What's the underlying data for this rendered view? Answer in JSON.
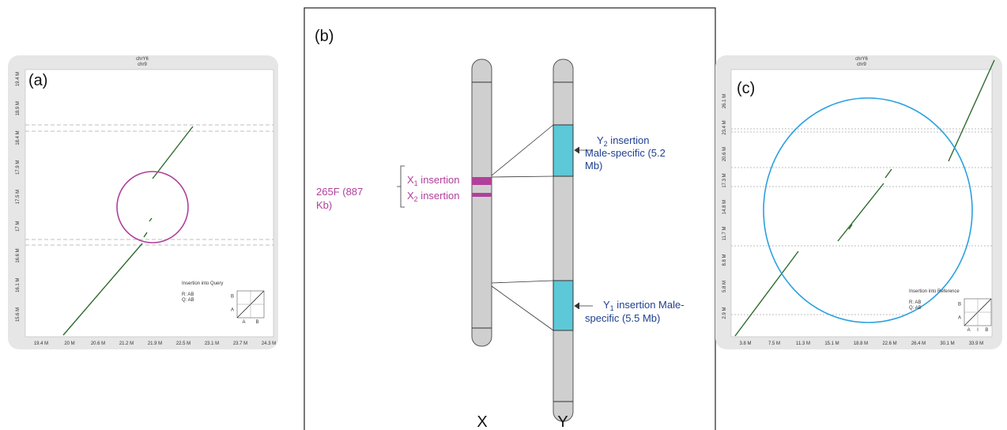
{
  "panel_a": {
    "label": "(a)",
    "title": [
      "chrY6",
      "chr9"
    ],
    "yticks": [
      "19.4 M",
      "18.9 M",
      "18.4 M",
      "17.9 M",
      "17.5 M",
      "17 M",
      "16.6 M",
      "16.1 M",
      "15.6 M"
    ],
    "xticks": [
      "19.4 M",
      "20 M",
      "20.6 M",
      "21.2 M",
      "21.9 M",
      "22.5 M",
      "23.1 M",
      "23.7 M",
      "24.3 M"
    ],
    "legend": {
      "title": "Insertion into Query",
      "r": "R: AB",
      "q": "Q: AB",
      "x_labels": [
        "A",
        "B"
      ],
      "y_labels": [
        "A",
        "B"
      ]
    }
  },
  "panel_b": {
    "label": "(b)",
    "chromosomes": [
      "X",
      "Y"
    ],
    "group_label": [
      "265F (887",
      "Kb)"
    ],
    "x1": {
      "letter": "X",
      "sub": "1",
      "rest": " insertion"
    },
    "x2": {
      "letter": "X",
      "sub": "2",
      "rest": " insertion"
    },
    "y2": {
      "letter": "Y",
      "sub": "2",
      "rest": " insertion",
      "lines": [
        "Male-specific (5.2",
        "Mb)"
      ]
    },
    "y1": {
      "letter": "Y",
      "sub": "1",
      "rest": " insertion Male-",
      "lines": [
        "specific (5.5 Mb)"
      ]
    }
  },
  "panel_c": {
    "label": "(c)",
    "title": [
      "chrY6",
      "chr9"
    ],
    "yticks": [
      "26.1 M",
      "23.4 M",
      "20.6 M",
      "17.3 M",
      "14.8 M",
      "11.7 M",
      "8.8 M",
      "5.8 M",
      "2.9 M"
    ],
    "xticks": [
      "3.8 M",
      "7.5 M",
      "11.3 M",
      "15.1 M",
      "18.8 M",
      "22.6 M",
      "26.4 M",
      "30.1 M",
      "33.9 M"
    ],
    "legend": {
      "title": "Insertion into Reference",
      "r": "R: AB",
      "q": "Q: AB",
      "x_labels": [
        "A",
        "I",
        "B"
      ],
      "y_labels": [
        "A",
        "B"
      ]
    }
  }
}
